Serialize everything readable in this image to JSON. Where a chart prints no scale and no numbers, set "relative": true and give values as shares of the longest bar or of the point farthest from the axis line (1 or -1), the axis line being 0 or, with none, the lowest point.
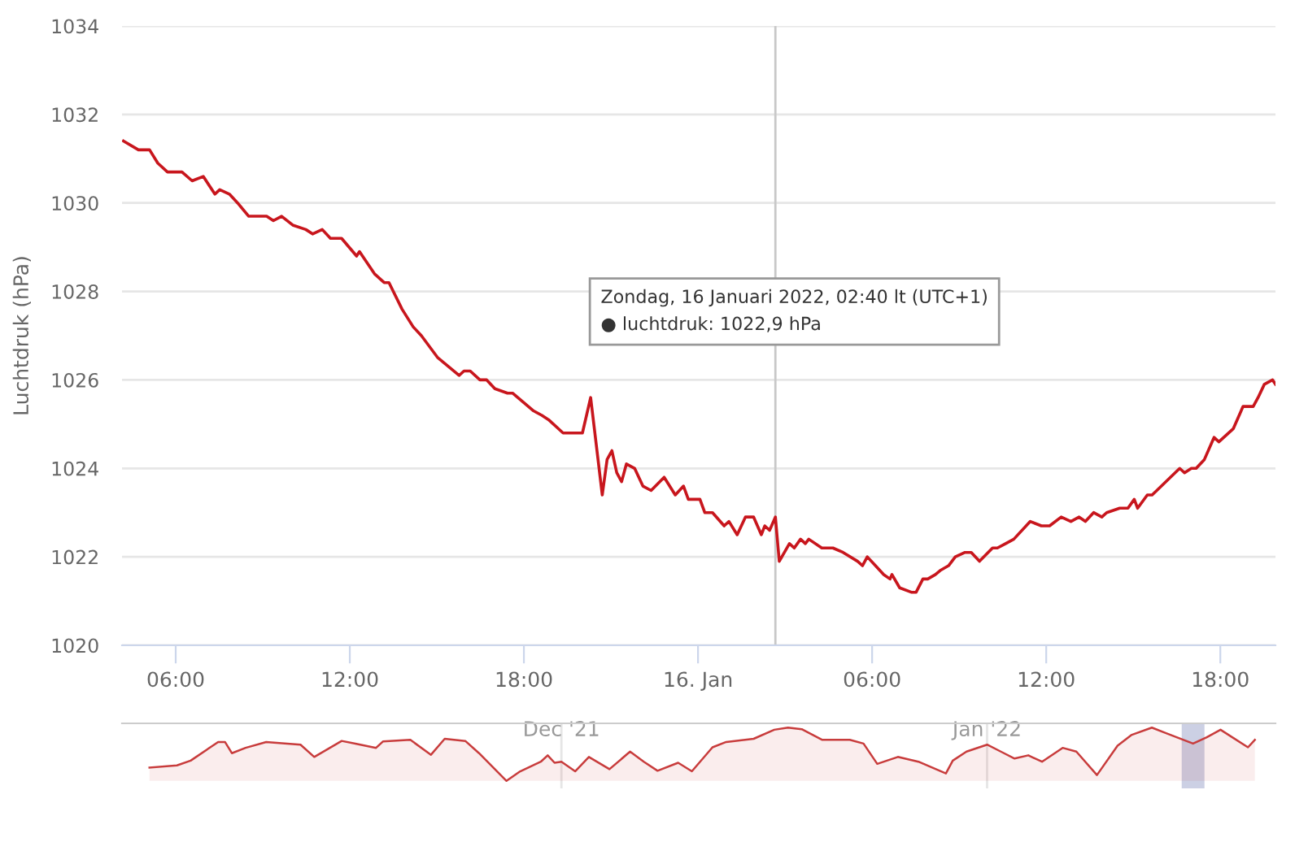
{
  "chart_data": [
    {
      "type": "line",
      "ylabel": "Luchtdruk (hPa)",
      "grid": "y",
      "xlim": [
        "2022-01-15T04:09",
        "2022-01-16T19:54"
      ],
      "xticks": [
        {
          "value": "2022-01-15T06:00",
          "label": "06:00"
        },
        {
          "value": "2022-01-15T12:00",
          "label": "12:00"
        },
        {
          "value": "2022-01-15T18:00",
          "label": "18:00"
        },
        {
          "value": "2022-01-16T00:00",
          "label": "16. Jan"
        },
        {
          "value": "2022-01-16T06:00",
          "label": "06:00"
        },
        {
          "value": "2022-01-16T12:00",
          "label": "12:00"
        },
        {
          "value": "2022-01-16T18:00",
          "label": "18:00"
        }
      ],
      "ylim": [
        1020,
        1034
      ],
      "yticks": [
        1020,
        1022,
        1024,
        1026,
        1028,
        1030,
        1032,
        1034
      ],
      "ref_lines": [
        {
          "axis": "x",
          "value": "2022-01-16T02:40",
          "color": "#c8c8c8"
        }
      ],
      "annotations": [
        "Zondag, 16 Januari 2022, 02:40 lt (UTC+1)\n● luchtdruk: 1022,9 hPa"
      ],
      "series": [
        {
          "color": "#c8161d",
          "x": [
            "2022-01-15T04:12",
            "2022-01-15T04:43",
            "2022-01-15T05:06",
            "2022-01-15T05:23",
            "2022-01-15T05:43",
            "2022-01-15T06:13",
            "2022-01-15T06:34",
            "2022-01-15T06:57",
            "2022-01-15T07:21",
            "2022-01-15T07:31",
            "2022-01-15T07:51",
            "2022-01-15T08:08",
            "2022-01-15T08:31",
            "2022-01-15T09:08",
            "2022-01-15T09:22",
            "2022-01-15T09:39",
            "2022-01-15T10:02",
            "2022-01-15T10:29",
            "2022-01-15T10:43",
            "2022-01-15T11:03",
            "2022-01-15T11:20",
            "2022-01-15T11:43",
            "2022-01-15T12:14",
            "2022-01-15T12:20",
            "2022-01-15T12:51",
            "2022-01-15T13:11",
            "2022-01-15T13:21",
            "2022-01-15T13:48",
            "2022-01-15T14:11",
            "2022-01-15T14:28",
            "2022-01-15T15:02",
            "2022-01-15T15:46",
            "2022-01-15T15:56",
            "2022-01-15T16:09",
            "2022-01-15T16:29",
            "2022-01-15T16:43",
            "2022-01-15T17:00",
            "2022-01-15T17:26",
            "2022-01-15T17:37",
            "2022-01-15T18:20",
            "2022-01-15T18:37",
            "2022-01-15T18:51",
            "2022-01-15T19:21",
            "2022-01-15T20:01",
            "2022-01-15T20:18",
            "2022-01-15T20:42",
            "2022-01-15T20:52",
            "2022-01-15T21:02",
            "2022-01-15T21:12",
            "2022-01-15T21:22",
            "2022-01-15T21:32",
            "2022-01-15T21:49",
            "2022-01-15T22:06",
            "2022-01-15T22:23",
            "2022-01-15T22:50",
            "2022-01-15T23:13",
            "2022-01-15T23:30",
            "2022-01-15T23:40",
            "2022-01-16T00:04",
            "2022-01-16T00:14",
            "2022-01-16T00:30",
            "2022-01-16T00:54",
            "2022-01-16T01:04",
            "2022-01-16T01:21",
            "2022-01-16T01:38",
            "2022-01-16T01:55",
            "2022-01-16T02:11",
            "2022-01-16T02:18",
            "2022-01-16T02:28",
            "2022-01-16T02:40",
            "2022-01-16T02:48",
            "2022-01-16T03:09",
            "2022-01-16T03:19",
            "2022-01-16T03:32",
            "2022-01-16T03:42",
            "2022-01-16T03:49",
            "2022-01-16T04:16",
            "2022-01-16T04:39",
            "2022-01-16T05:00",
            "2022-01-16T05:30",
            "2022-01-16T05:40",
            "2022-01-16T05:50",
            "2022-01-16T06:07",
            "2022-01-16T06:24",
            "2022-01-16T06:37",
            "2022-01-16T06:41",
            "2022-01-16T06:57",
            "2022-01-16T07:21",
            "2022-01-16T07:31",
            "2022-01-16T07:45",
            "2022-01-16T07:55",
            "2022-01-16T08:11",
            "2022-01-16T08:22",
            "2022-01-16T08:38",
            "2022-01-16T08:52",
            "2022-01-16T09:12",
            "2022-01-16T09:25",
            "2022-01-16T09:42",
            "2022-01-16T10:09",
            "2022-01-16T10:19",
            "2022-01-16T10:36",
            "2022-01-16T10:53",
            "2022-01-16T11:27",
            "2022-01-16T11:50",
            "2022-01-16T12:07",
            "2022-01-16T12:31",
            "2022-01-16T12:51",
            "2022-01-16T13:08",
            "2022-01-16T13:21",
            "2022-01-16T13:38",
            "2022-01-16T13:55",
            "2022-01-16T14:05",
            "2022-01-16T14:32",
            "2022-01-16T14:49",
            "2022-01-16T15:02",
            "2022-01-16T15:09",
            "2022-01-16T15:29",
            "2022-01-16T15:39",
            "2022-01-16T16:36",
            "2022-01-16T16:46",
            "2022-01-16T17:00",
            "2022-01-16T17:10",
            "2022-01-16T17:27",
            "2022-01-16T17:47",
            "2022-01-16T17:57",
            "2022-01-16T18:27",
            "2022-01-16T18:47",
            "2022-01-16T19:08",
            "2022-01-16T19:18",
            "2022-01-16T19:31",
            "2022-01-16T19:48",
            "2022-01-16T19:54"
          ],
          "values": [
            1031.4,
            1031.2,
            1031.2,
            1030.9,
            1030.7,
            1030.7,
            1030.5,
            1030.6,
            1030.2,
            1030.3,
            1030.2,
            1030.0,
            1029.7,
            1029.7,
            1029.6,
            1029.7,
            1029.5,
            1029.4,
            1029.3,
            1029.4,
            1029.2,
            1029.2,
            1028.8,
            1028.9,
            1028.4,
            1028.2,
            1028.2,
            1027.6,
            1027.2,
            1027.0,
            1026.5,
            1026.1,
            1026.2,
            1026.2,
            1026.0,
            1026.0,
            1025.8,
            1025.7,
            1025.7,
            1025.3,
            1025.2,
            1025.1,
            1024.8,
            1024.8,
            1025.6,
            1023.4,
            1024.2,
            1024.4,
            1023.9,
            1023.7,
            1024.1,
            1024.0,
            1023.6,
            1023.5,
            1023.8,
            1023.4,
            1023.6,
            1023.3,
            1023.3,
            1023.0,
            1023.0,
            1022.7,
            1022.8,
            1022.5,
            1022.9,
            1022.9,
            1022.5,
            1022.7,
            1022.6,
            1022.9,
            1021.9,
            1022.3,
            1022.2,
            1022.4,
            1022.3,
            1022.4,
            1022.2,
            1022.2,
            1022.1,
            1021.9,
            1021.8,
            1022.0,
            1021.8,
            1021.6,
            1021.5,
            1021.6,
            1021.3,
            1021.2,
            1021.2,
            1021.5,
            1021.5,
            1021.6,
            1021.7,
            1021.8,
            1022.0,
            1022.1,
            1022.1,
            1021.9,
            1022.2,
            1022.2,
            1022.3,
            1022.4,
            1022.8,
            1022.7,
            1022.7,
            1022.9,
            1022.8,
            1022.9,
            1022.8,
            1023.0,
            1022.9,
            1023.0,
            1023.1,
            1023.1,
            1023.3,
            1023.1,
            1023.4,
            1023.4,
            1024.0,
            1023.9,
            1024.0,
            1024.0,
            1024.2,
            1024.7,
            1024.6,
            1024.9,
            1025.4,
            1025.4,
            1025.6,
            1025.9,
            1026.0,
            1025.9
          ]
        }
      ]
    },
    {
      "type": "area",
      "relative": true,
      "grid": "x",
      "xlim": [
        "2021-10-30",
        "2022-01-22"
      ],
      "xticks": [
        {
          "value": "2021-12-01",
          "label": "Dec '21"
        },
        {
          "value": "2022-01-01",
          "label": "Jan '22"
        }
      ],
      "bands": [
        {
          "axis": "x",
          "from": "2022-01-15T04:09",
          "to": "2022-01-16T19:54",
          "color": "#ccd0e4"
        }
      ],
      "series": [
        {
          "color": "#c83c3c",
          "x": [
            "2021-11-01",
            "2021-11-03",
            "2021-11-04",
            "2021-11-06",
            "2021-11-06T12:00",
            "2021-11-07",
            "2021-11-08",
            "2021-11-09T12:00",
            "2021-11-12",
            "2021-11-13",
            "2021-11-15",
            "2021-11-16",
            "2021-11-17T12:00",
            "2021-11-18",
            "2021-11-20",
            "2021-11-21T12:00",
            "2021-11-22T12:00",
            "2021-11-24",
            "2021-11-25",
            "2021-11-27",
            "2021-11-28",
            "2021-11-29T12:00",
            "2021-11-30",
            "2021-11-30T12:00",
            "2021-12-01",
            "2021-12-02",
            "2021-12-03",
            "2021-12-04T12:00",
            "2021-12-06",
            "2021-12-07",
            "2021-12-08",
            "2021-12-09T12:00",
            "2021-12-10T12:00",
            "2021-12-12",
            "2021-12-13",
            "2021-12-15",
            "2021-12-16T12:00",
            "2021-12-17T12:00",
            "2021-12-18T12:00",
            "2021-12-20",
            "2021-12-22",
            "2021-12-23",
            "2021-12-24",
            "2021-12-25T12:00",
            "2021-12-27",
            "2021-12-29",
            "2021-12-29T12:00",
            "2021-12-30T12:00",
            "2022-01-01",
            "2022-01-02",
            "2022-01-03",
            "2022-01-04",
            "2022-01-05",
            "2022-01-06T12:00",
            "2022-01-07T12:00",
            "2022-01-09",
            "2022-01-10T12:00",
            "2022-01-11T12:00",
            "2022-01-13",
            "2022-01-14",
            "2022-01-16",
            "2022-01-17",
            "2022-01-18",
            "2022-01-20",
            "2022-01-20T12:00"
          ],
          "values": [
            0.25,
            0.29,
            0.38,
            0.73,
            0.73,
            0.52,
            0.62,
            0.73,
            0.68,
            0.45,
            0.75,
            0.7,
            0.62,
            0.74,
            0.77,
            0.49,
            0.79,
            0.75,
            0.52,
            0,
            0.18,
            0.36,
            0.48,
            0.34,
            0.36,
            0.18,
            0.45,
            0.22,
            0.55,
            0.36,
            0.19,
            0.34,
            0.18,
            0.63,
            0.73,
            0.79,
            0.96,
            1,
            0.97,
            0.77,
            0.77,
            0.7,
            0.32,
            0.45,
            0.36,
            0.14,
            0.38,
            0.55,
            0.68,
            0.55,
            0.42,
            0.48,
            0.36,
            0.62,
            0.55,
            0.11,
            0.66,
            0.86,
            1,
            0.9,
            0.7,
            0.82,
            0.96,
            0.63,
            0.77
          ]
        }
      ]
    }
  ]
}
